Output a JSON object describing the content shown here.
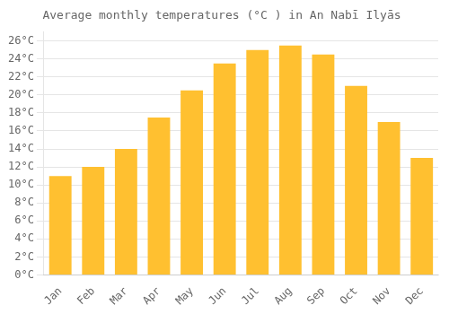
{
  "chart_data": {
    "type": "bar",
    "title": "Average monthly temperatures (°C ) in An Nabī Ilyās",
    "categories": [
      "Jan",
      "Feb",
      "Mar",
      "Apr",
      "May",
      "Jun",
      "Jul",
      "Aug",
      "Sep",
      "Oct",
      "Nov",
      "Dec"
    ],
    "values": [
      11,
      12,
      14,
      17.5,
      20.5,
      23.5,
      25,
      25.5,
      24.5,
      21,
      17,
      13
    ],
    "color": "#FFC030",
    "ylim": [
      0,
      27
    ],
    "yticks": [
      {
        "value": 0,
        "label": "0°C"
      },
      {
        "value": 2,
        "label": "2°C"
      },
      {
        "value": 4,
        "label": "4°C"
      },
      {
        "value": 6,
        "label": "6°C"
      },
      {
        "value": 8,
        "label": "8°C"
      },
      {
        "value": 10,
        "label": "10°C"
      },
      {
        "value": 12,
        "label": "12°C"
      },
      {
        "value": 14,
        "label": "14°C"
      },
      {
        "value": 16,
        "label": "16°C"
      },
      {
        "value": 18,
        "label": "18°C"
      },
      {
        "value": 20,
        "label": "20°C"
      },
      {
        "value": 22,
        "label": "22°C"
      },
      {
        "value": 24,
        "label": "24°C"
      },
      {
        "value": 26,
        "label": "26°C"
      }
    ],
    "grid": true
  }
}
